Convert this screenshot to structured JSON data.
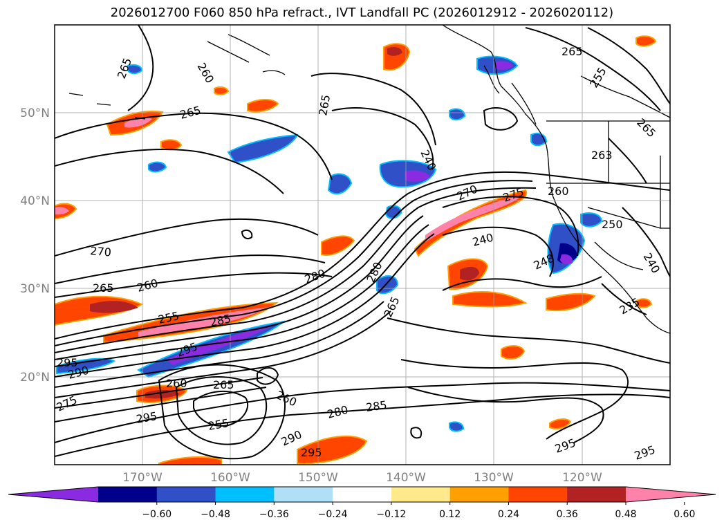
{
  "title": "2026012700 F060 850 hPa refract., IVT Landfall PC (2026012912 - 2026020112)",
  "map": {
    "lat_labels": [
      "50°N",
      "40°N",
      "30°N",
      "20°N"
    ],
    "lon_labels": [
      "170°W",
      "160°W",
      "150°W",
      "140°W",
      "130°W",
      "120°W"
    ],
    "lon_range": [
      -180,
      -110
    ],
    "lat_range": [
      10,
      60
    ],
    "contour_labels": [
      "265",
      "260",
      "265",
      "265",
      "270",
      "265",
      "260",
      "255",
      "285",
      "295",
      "290",
      "295",
      "275",
      "280",
      "260",
      "265",
      "260",
      "255",
      "280",
      "285",
      "290",
      "295",
      "295",
      "240",
      "248",
      "260",
      "263",
      "255",
      "265",
      "250",
      "240",
      "235",
      "295",
      "295",
      "240",
      "265",
      "270",
      "275",
      "280",
      "265"
    ],
    "colors": {
      "neg_strong": "#8a2be2",
      "neg_dark": "#00008b",
      "neg_mid": "#3050c8",
      "neg_cyan": "#00bfff",
      "neg_light": "#b0e0f8",
      "pos_yellow": "#ffe98a",
      "pos_orange": "#ffa000",
      "pos_red": "#ff4500",
      "pos_darkred": "#b22222",
      "pos_pink": "#ff82ab"
    }
  },
  "colorbar": {
    "ticks": [
      "−0.60",
      "−0.48",
      "−0.36",
      "−0.24",
      "−0.12",
      "0.12",
      "0.24",
      "0.36",
      "0.48",
      "0.60"
    ],
    "colors": [
      "#8a2be2",
      "#00008b",
      "#3050c8",
      "#00bfff",
      "#b0e0f8",
      "#ffffff",
      "#ffe98a",
      "#ffa000",
      "#ff4500",
      "#b22222",
      "#ff82ab"
    ]
  }
}
